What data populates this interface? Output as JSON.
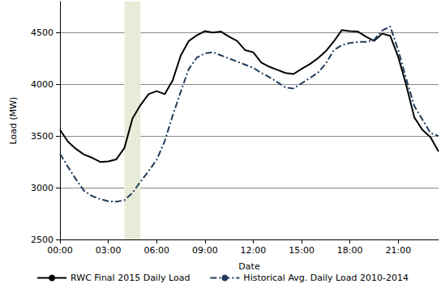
{
  "chart_data": {
    "type": "line",
    "x_label": "Date",
    "y_label": "Load (MW)",
    "x": [
      0,
      0.5,
      1,
      1.5,
      2,
      2.5,
      3,
      3.5,
      4,
      4.5,
      5,
      5.5,
      6,
      6.5,
      7,
      7.5,
      8,
      8.5,
      9,
      9.5,
      10,
      10.5,
      11,
      11.5,
      12,
      12.5,
      13,
      13.5,
      14,
      14.5,
      15,
      15.5,
      16,
      16.5,
      17,
      17.5,
      18,
      18.5,
      19,
      19.5,
      20,
      20.5,
      21,
      21.5,
      22,
      22.5,
      23,
      23.5
    ],
    "series": [
      {
        "name": "RWC Final 2015 Daily Load",
        "color": "#000000",
        "line_style": "solid",
        "values": [
          3560,
          3445,
          3375,
          3320,
          3290,
          3250,
          3255,
          3275,
          3385,
          3670,
          3800,
          3905,
          3935,
          3905,
          4040,
          4280,
          4420,
          4475,
          4515,
          4500,
          4510,
          4460,
          4420,
          4330,
          4310,
          4210,
          4170,
          4140,
          4110,
          4100,
          4150,
          4195,
          4250,
          4320,
          4415,
          4525,
          4515,
          4510,
          4460,
          4420,
          4490,
          4470,
          4265,
          3990,
          3680,
          3560,
          3490,
          3350
        ]
      },
      {
        "name": "Historical Avg. Daily Load 2010-2014",
        "color": "#1f3a5a",
        "line_style": "dashdot",
        "values": [
          3330,
          3200,
          3080,
          2970,
          2920,
          2890,
          2870,
          2865,
          2880,
          2950,
          3060,
          3160,
          3270,
          3450,
          3700,
          3930,
          4150,
          4260,
          4300,
          4310,
          4280,
          4250,
          4220,
          4190,
          4160,
          4110,
          4070,
          4020,
          3970,
          3960,
          4010,
          4060,
          4110,
          4200,
          4330,
          4380,
          4400,
          4410,
          4410,
          4430,
          4520,
          4560,
          4330,
          4050,
          3790,
          3660,
          3530,
          3500
        ]
      }
    ],
    "shaded_range": [
      4,
      5
    ],
    "xlim": [
      0,
      23.5
    ],
    "xticks": [
      {
        "value": 0,
        "label": "00:00"
      },
      {
        "value": 3,
        "label": "03:00"
      },
      {
        "value": 6,
        "label": "06:00"
      },
      {
        "value": 9,
        "label": "09:00"
      },
      {
        "value": 12,
        "label": "12:00"
      },
      {
        "value": 15,
        "label": "15:00"
      },
      {
        "value": 18,
        "label": "18:00"
      },
      {
        "value": 21,
        "label": "21:00"
      }
    ],
    "ylim": [
      2500,
      4800
    ],
    "yticks": [
      2500,
      3000,
      3500,
      4000,
      4500
    ],
    "grid": true,
    "legend": "bottom"
  }
}
